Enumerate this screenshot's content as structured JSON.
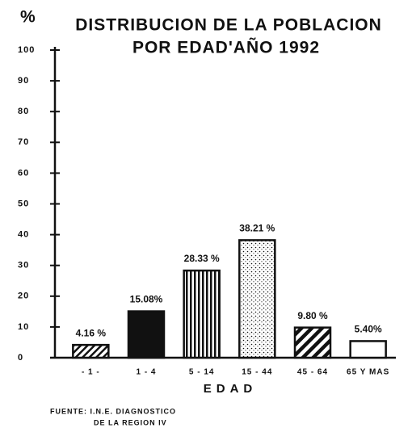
{
  "chart_data": {
    "type": "bar",
    "title": [
      "DISTRIBUCION DE LA POBLACION",
      "POR EDAD'AÑO 1992"
    ],
    "y_label": "%",
    "x_label": "EDAD",
    "source": [
      "FUENTE: I.N.E. DIAGNOSTICO",
      "DE LA REGION IV"
    ],
    "categories": [
      "- 1 -",
      "1 - 4",
      "5 - 14",
      "15 - 44",
      "45 - 64",
      "65 Y MAS"
    ],
    "values": [
      4.16,
      15.08,
      28.33,
      38.21,
      9.8,
      5.4
    ],
    "value_labels": [
      "4.16 %",
      "15.08%",
      "28.33 %",
      "38.21 %",
      "9.80 %",
      "5.40%"
    ],
    "patterns": [
      "hatch",
      "solid",
      "vertical",
      "dots",
      "thick-hatch",
      "none"
    ],
    "color": "#111111",
    "ylim": [
      0,
      100
    ],
    "yticks": [
      0,
      10,
      20,
      30,
      40,
      50,
      60,
      70,
      80,
      90,
      100
    ]
  }
}
